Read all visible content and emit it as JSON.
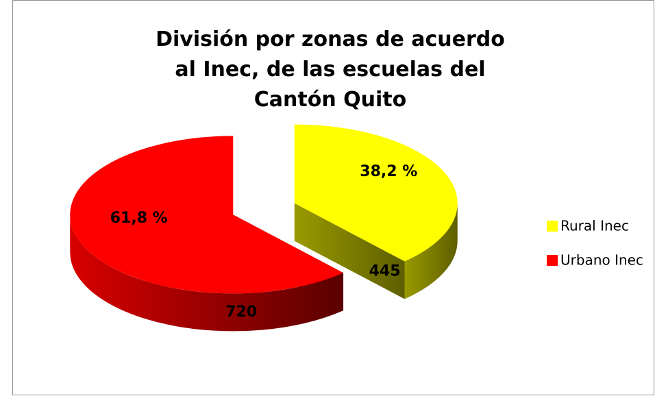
{
  "chart_data": {
    "type": "pie",
    "title": "División por zonas de acuerdo al Inec, de las escuelas del Cantón Quito",
    "categories": [
      "Rural Inec",
      "Urbano Inec"
    ],
    "values": [
      445,
      720
    ],
    "percentages": [
      38.2,
      61.8
    ],
    "percentage_labels": [
      "38,2 %",
      "61,8 %"
    ],
    "colors": [
      "#ffff00",
      "#ff0000"
    ],
    "side_colors": [
      [
        "#9a9a00",
        "#5e5e00"
      ],
      [
        "#d80000",
        "#5a0000"
      ]
    ],
    "legend": "right"
  }
}
